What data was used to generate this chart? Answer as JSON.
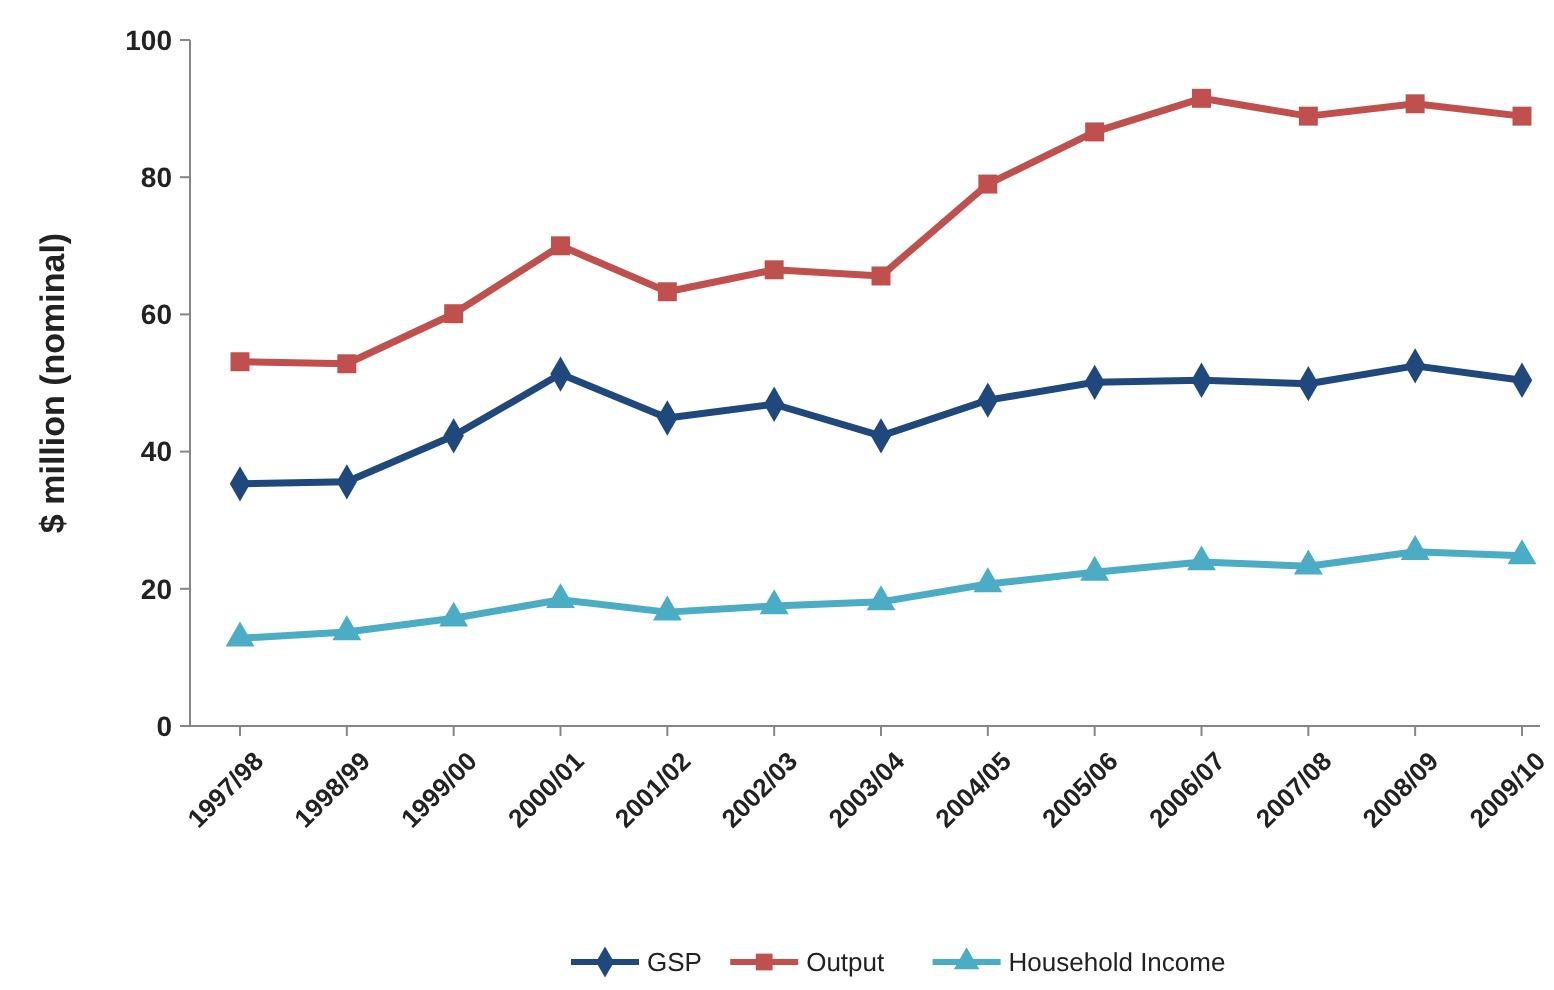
{
  "chart_data": {
    "type": "line",
    "ylabel": "$ million (nominal)",
    "categories": [
      "1997/98",
      "1998/99",
      "1999/00",
      "2000/01",
      "2001/02",
      "2002/03",
      "2003/04",
      "2004/05",
      "2005/06",
      "2006/07",
      "2007/08",
      "2008/09",
      "2009/10"
    ],
    "series": [
      {
        "name": "GSP",
        "color": "#1f497d",
        "marker": "diamond",
        "values": [
          35.3,
          35.6,
          42.3,
          51.3,
          44.9,
          46.9,
          42.3,
          47.5,
          50.1,
          50.4,
          49.9,
          52.5,
          50.4
        ]
      },
      {
        "name": "Output",
        "color": "#c0504d",
        "marker": "square",
        "values": [
          53.1,
          52.8,
          60.1,
          70.0,
          63.3,
          66.5,
          65.6,
          79.0,
          86.6,
          91.5,
          88.9,
          90.7,
          88.9
        ]
      },
      {
        "name": "Household Income",
        "color": "#4bacc6",
        "marker": "triangle",
        "values": [
          12.8,
          13.7,
          15.7,
          18.4,
          16.6,
          17.5,
          18.1,
          20.7,
          22.4,
          23.9,
          23.3,
          25.4,
          24.8
        ]
      }
    ],
    "ylim": [
      0,
      100
    ],
    "yticks": [
      0,
      20,
      40,
      60,
      80,
      100
    ],
    "grid": false,
    "legend": "bottom",
    "line_style": "solid"
  }
}
